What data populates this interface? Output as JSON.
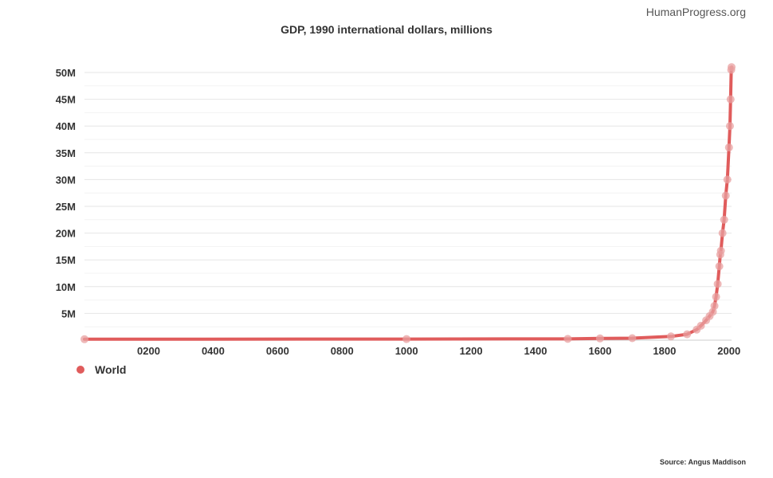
{
  "watermark": "HumanProgress.org",
  "source": "Source: Angus Maddison",
  "colors": {
    "series": "#e05c5c",
    "point": "#e8a0a0",
    "grid": "#e6e6e6",
    "axis": "#cccccc"
  },
  "chart_data": {
    "type": "line",
    "title": "GDP, 1990 international dollars, millions",
    "xlabel": "",
    "ylabel": "",
    "xlim": [
      1,
      2008
    ],
    "ylim": [
      0,
      50000000
    ],
    "x_ticks": [
      200,
      400,
      600,
      800,
      1000,
      1200,
      1400,
      1600,
      1800,
      2000
    ],
    "x_tick_labels": [
      "0200",
      "0400",
      "0600",
      "0800",
      "1000",
      "1200",
      "1400",
      "1600",
      "1800",
      "2000"
    ],
    "y_ticks": [
      5000000,
      10000000,
      15000000,
      20000000,
      25000000,
      30000000,
      35000000,
      40000000,
      45000000,
      50000000
    ],
    "y_tick_labels": [
      "5M",
      "10M",
      "15M",
      "20M",
      "25M",
      "30M",
      "35M",
      "40M",
      "45M",
      "50M"
    ],
    "grid": true,
    "legend_position": "bottom-left",
    "series": [
      {
        "name": "World",
        "points": [
          [
            1,
            180000
          ],
          [
            1000,
            210000
          ],
          [
            1500,
            250000
          ],
          [
            1600,
            330000
          ],
          [
            1700,
            370000
          ],
          [
            1820,
            700000
          ],
          [
            1870,
            1100000
          ],
          [
            1900,
            1970000
          ],
          [
            1913,
            2700000
          ],
          [
            1929,
            3700000
          ],
          [
            1940,
            4500000
          ],
          [
            1950,
            5300000
          ],
          [
            1955,
            6400000
          ],
          [
            1960,
            8100000
          ],
          [
            1965,
            10500000
          ],
          [
            1970,
            13800000
          ],
          [
            1973,
            16000000
          ],
          [
            1975,
            16700000
          ],
          [
            1980,
            20000000
          ],
          [
            1985,
            22500000
          ],
          [
            1990,
            27000000
          ],
          [
            1995,
            30000000
          ],
          [
            2000,
            36000000
          ],
          [
            2003,
            40000000
          ],
          [
            2005,
            45000000
          ],
          [
            2007,
            50500000
          ],
          [
            2008,
            51000000
          ]
        ]
      }
    ]
  }
}
